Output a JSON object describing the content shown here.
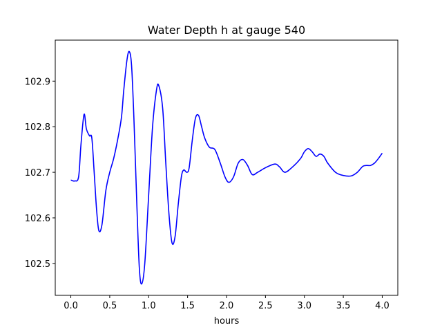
{
  "chart_data": {
    "type": "line",
    "title": "Water Depth h at gauge 540",
    "xlabel": "hours",
    "ylabel": "",
    "xlim": [
      -0.2,
      4.2
    ],
    "ylim": [
      102.43,
      102.99
    ],
    "xticks": [
      0.0,
      0.5,
      1.0,
      1.5,
      2.0,
      2.5,
      3.0,
      3.5,
      4.0
    ],
    "xtick_labels": [
      "0.0",
      "0.5",
      "1.0",
      "1.5",
      "2.0",
      "2.5",
      "3.0",
      "3.5",
      "4.0"
    ],
    "yticks": [
      102.5,
      102.6,
      102.7,
      102.8,
      102.9
    ],
    "ytick_labels": [
      "102.5",
      "102.6",
      "102.7",
      "102.8",
      "102.9"
    ],
    "grid": false,
    "series": [
      {
        "color": "#0000ff",
        "x": [
          0.0,
          0.05,
          0.1,
          0.13,
          0.17,
          0.2,
          0.24,
          0.27,
          0.3,
          0.33,
          0.36,
          0.4,
          0.45,
          0.5,
          0.55,
          0.6,
          0.65,
          0.68,
          0.72,
          0.75,
          0.78,
          0.81,
          0.85,
          0.88,
          0.91,
          0.95,
          1.0,
          1.05,
          1.1,
          1.13,
          1.18,
          1.22,
          1.26,
          1.3,
          1.34,
          1.38,
          1.42,
          1.45,
          1.49,
          1.52,
          1.56,
          1.6,
          1.64,
          1.68,
          1.72,
          1.78,
          1.85,
          1.92,
          1.98,
          2.03,
          2.09,
          2.15,
          2.21,
          2.27,
          2.33,
          2.4,
          2.5,
          2.62,
          2.68,
          2.75,
          2.85,
          2.95,
          3.0,
          3.05,
          3.1,
          3.15,
          3.2,
          3.25,
          3.3,
          3.4,
          3.5,
          3.6,
          3.68,
          3.75,
          3.8,
          3.85,
          3.9,
          3.95,
          4.0
        ],
        "y": [
          102.683,
          102.681,
          102.69,
          102.76,
          102.827,
          102.795,
          102.78,
          102.775,
          102.7,
          102.62,
          102.572,
          102.585,
          102.66,
          102.7,
          102.73,
          102.77,
          102.82,
          102.88,
          102.945,
          102.965,
          102.935,
          102.82,
          102.62,
          102.49,
          102.455,
          102.5,
          102.65,
          102.8,
          102.88,
          102.89,
          102.84,
          102.72,
          102.61,
          102.545,
          102.56,
          102.63,
          102.69,
          102.705,
          102.7,
          102.71,
          102.77,
          102.818,
          102.825,
          102.8,
          102.775,
          102.755,
          102.75,
          102.72,
          102.69,
          102.678,
          102.69,
          102.72,
          102.728,
          102.715,
          102.695,
          102.7,
          102.71,
          102.718,
          102.712,
          102.7,
          102.712,
          102.73,
          102.745,
          102.752,
          102.745,
          102.735,
          102.74,
          102.735,
          102.72,
          102.7,
          102.693,
          102.692,
          102.7,
          102.713,
          102.715,
          102.715,
          102.72,
          102.73,
          102.742
        ]
      }
    ]
  }
}
